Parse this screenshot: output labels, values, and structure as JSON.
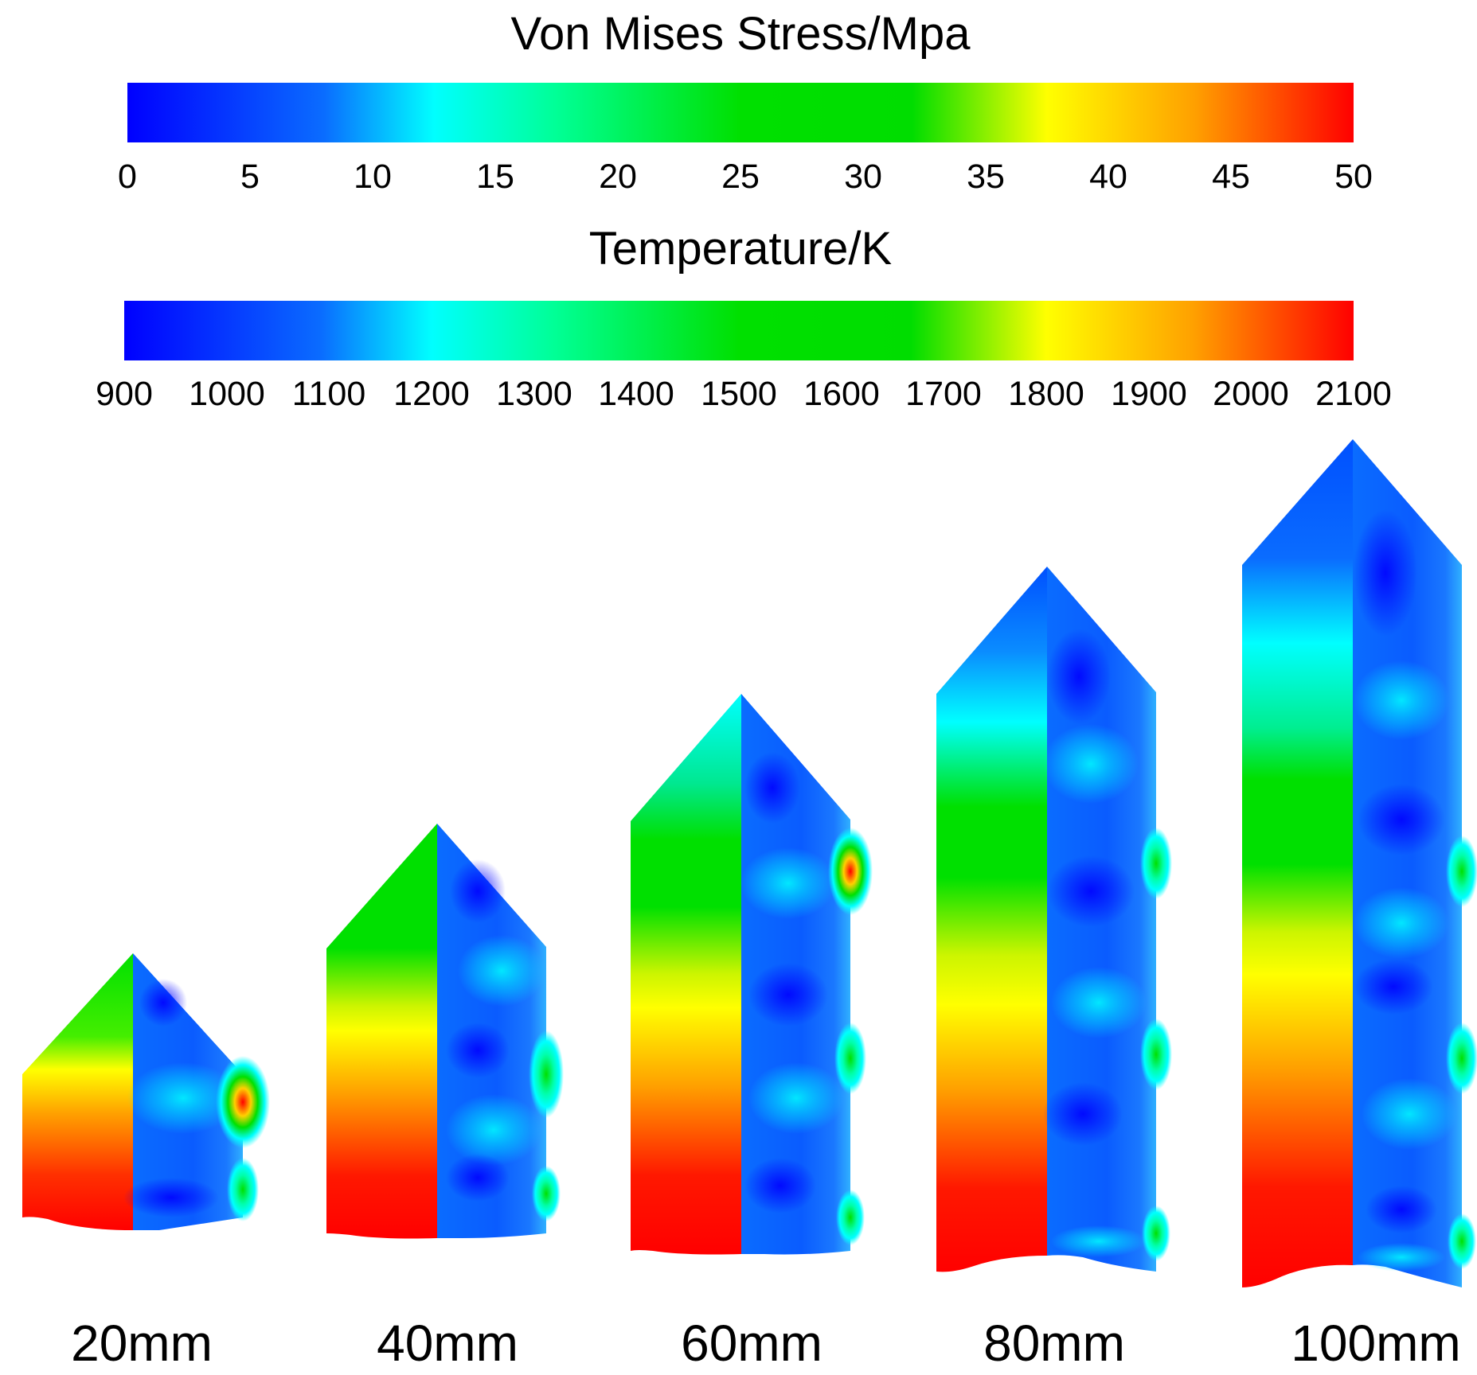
{
  "stress_legend": {
    "title": "Von Mises Stress/Mpa",
    "ticks": [
      "0",
      "5",
      "10",
      "15",
      "20",
      "25",
      "30",
      "35",
      "40",
      "45",
      "50"
    ]
  },
  "temperature_legend": {
    "title": "Temperature/K",
    "ticks": [
      "900",
      "1000",
      "1100",
      "1200",
      "1300",
      "1400",
      "1500",
      "1600",
      "1700",
      "1800",
      "1900",
      "2000",
      "2100"
    ]
  },
  "cases": [
    {
      "label": "20mm"
    },
    {
      "label": "40mm"
    },
    {
      "label": "60mm"
    },
    {
      "label": "80mm"
    },
    {
      "label": "100mm"
    }
  ],
  "colormap": {
    "blue": "#0000ff",
    "light_blue": "#0a6cff",
    "cyan": "#00ffff",
    "green": "#00e000",
    "yellow": "#ffff00",
    "orange": "#ffa000",
    "red": "#ff0000"
  }
}
